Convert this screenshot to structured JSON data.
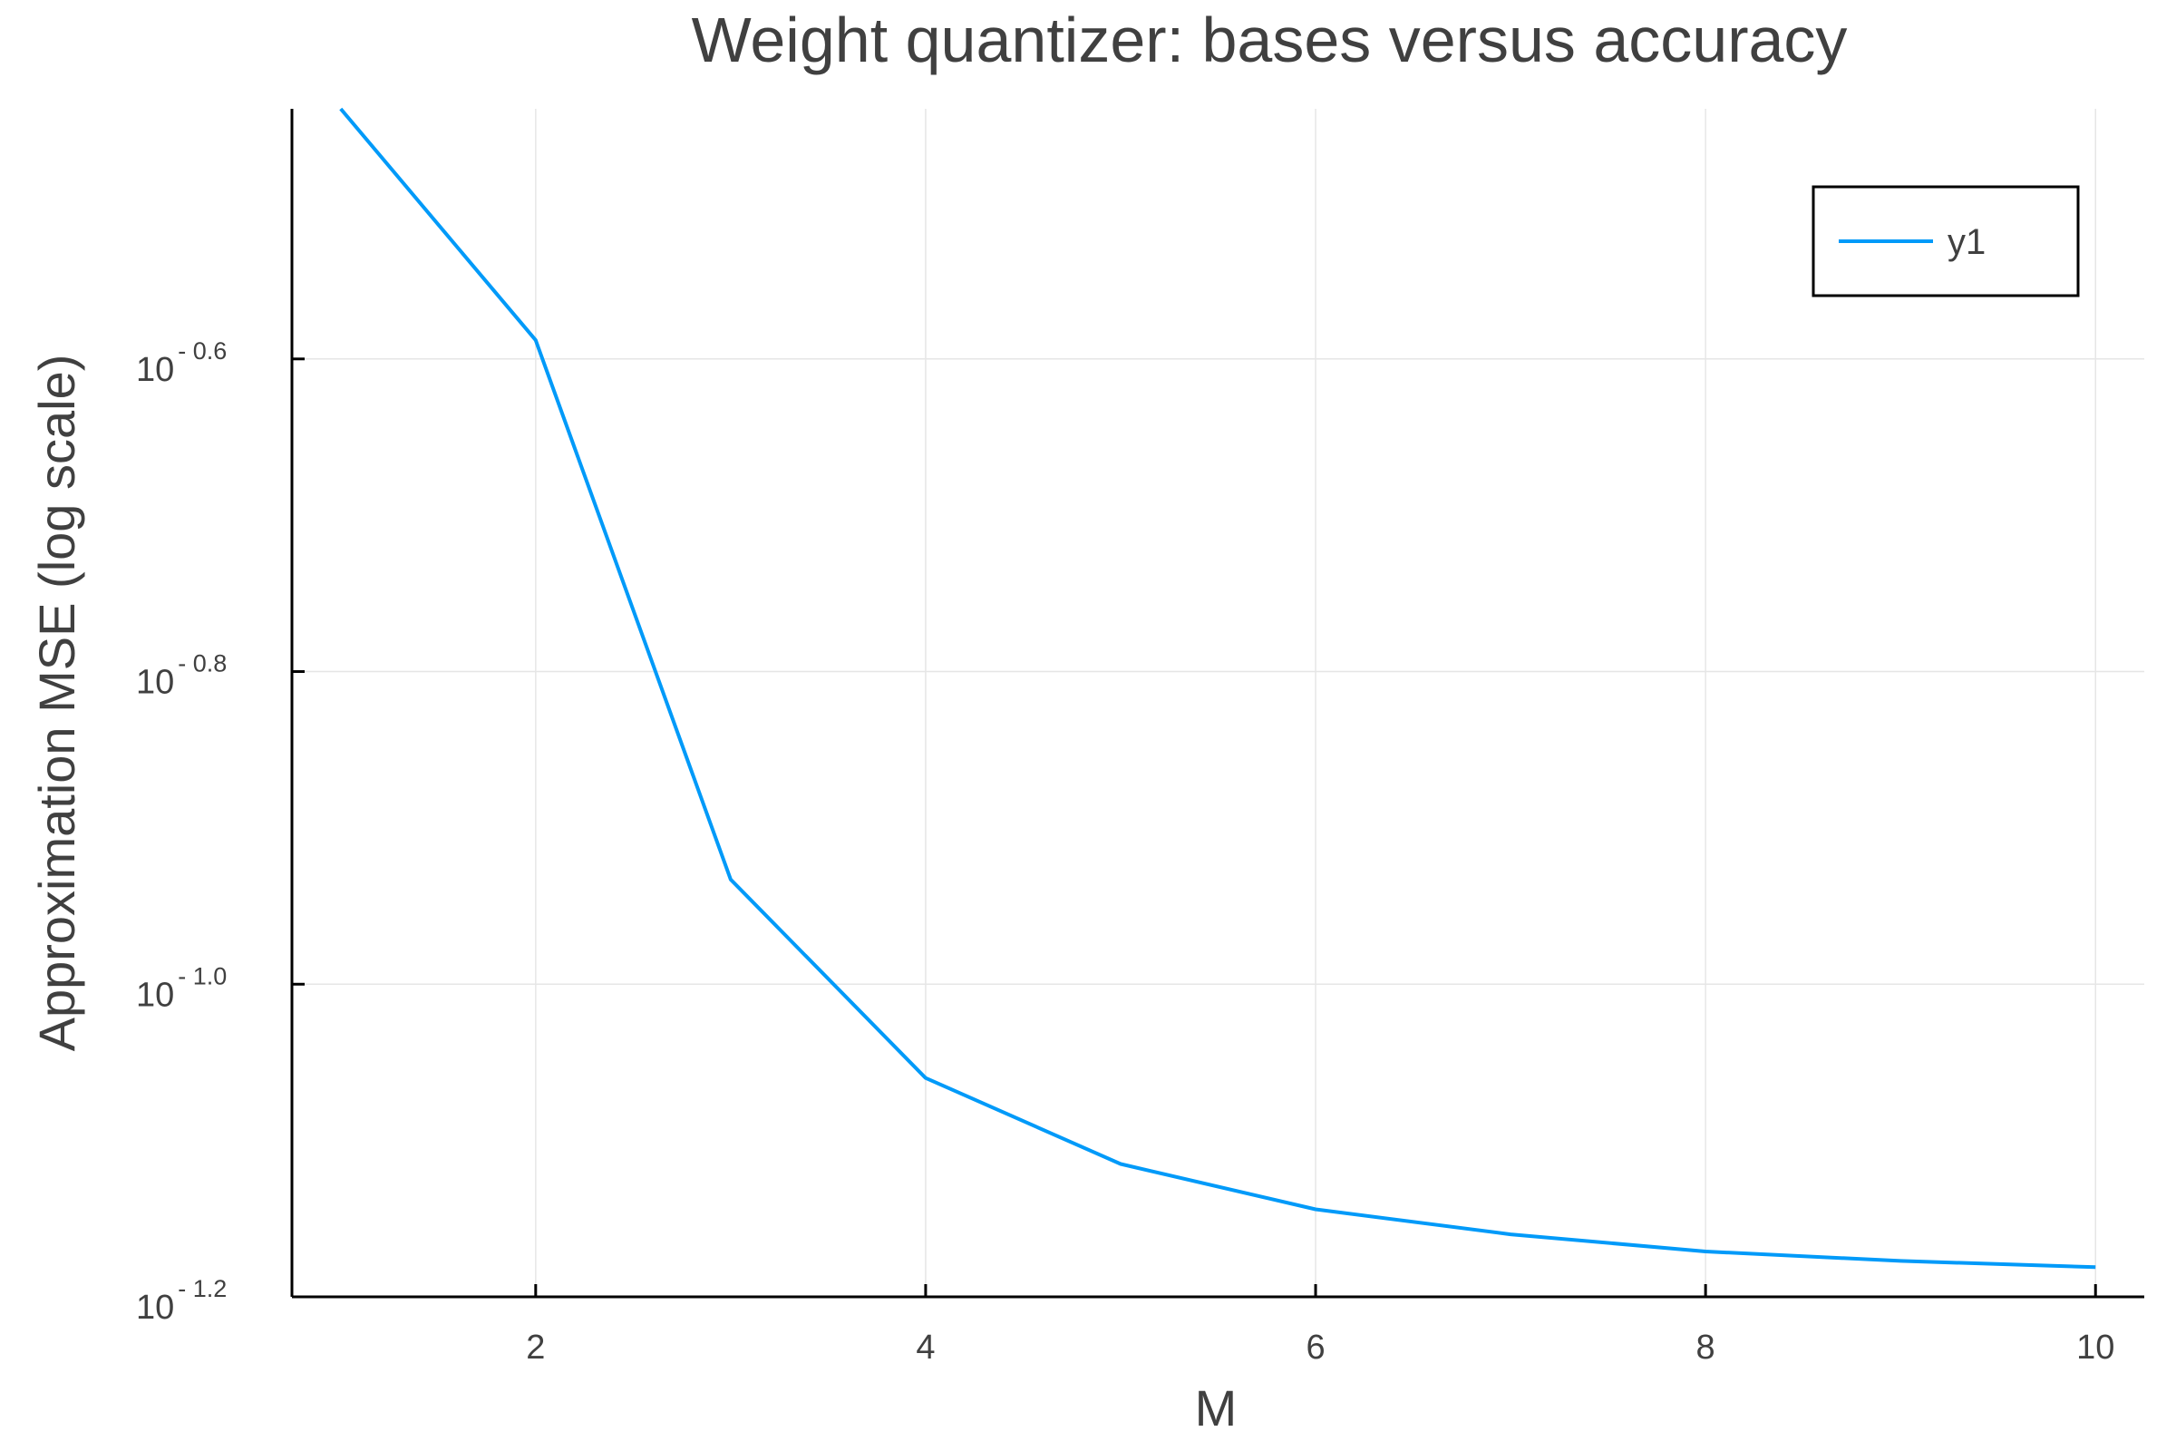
{
  "chart_data": {
    "type": "line",
    "title": "Weight quantizer: bases versus accuracy",
    "xlabel": "M",
    "ylabel": "Approximation MSE (log scale)",
    "yscale": "log10",
    "xlim": [
      0.75,
      10.25
    ],
    "ylim_log10": [
      -1.2,
      -0.44
    ],
    "xticks": [
      2,
      4,
      6,
      8,
      10
    ],
    "yticks": [
      {
        "exponent": -0.6,
        "base": "10",
        "exp_label": "- 0.6"
      },
      {
        "exponent": -0.8,
        "base": "10",
        "exp_label": "- 0.8"
      },
      {
        "exponent": -1.0,
        "base": "10",
        "exp_label": "- 1.0"
      },
      {
        "exponent": -1.2,
        "base": "10",
        "exp_label": "- 1.2"
      }
    ],
    "grid": true,
    "legend_position": "top-right",
    "series": [
      {
        "name": "y1",
        "color": "#009af9",
        "x": [
          1,
          2,
          3,
          4,
          5,
          6,
          7,
          8,
          9,
          10
        ],
        "log10_y": [
          -0.44,
          -0.588,
          -0.933,
          -1.06,
          -1.115,
          -1.144,
          -1.16,
          -1.171,
          -1.177,
          -1.181
        ]
      }
    ]
  }
}
